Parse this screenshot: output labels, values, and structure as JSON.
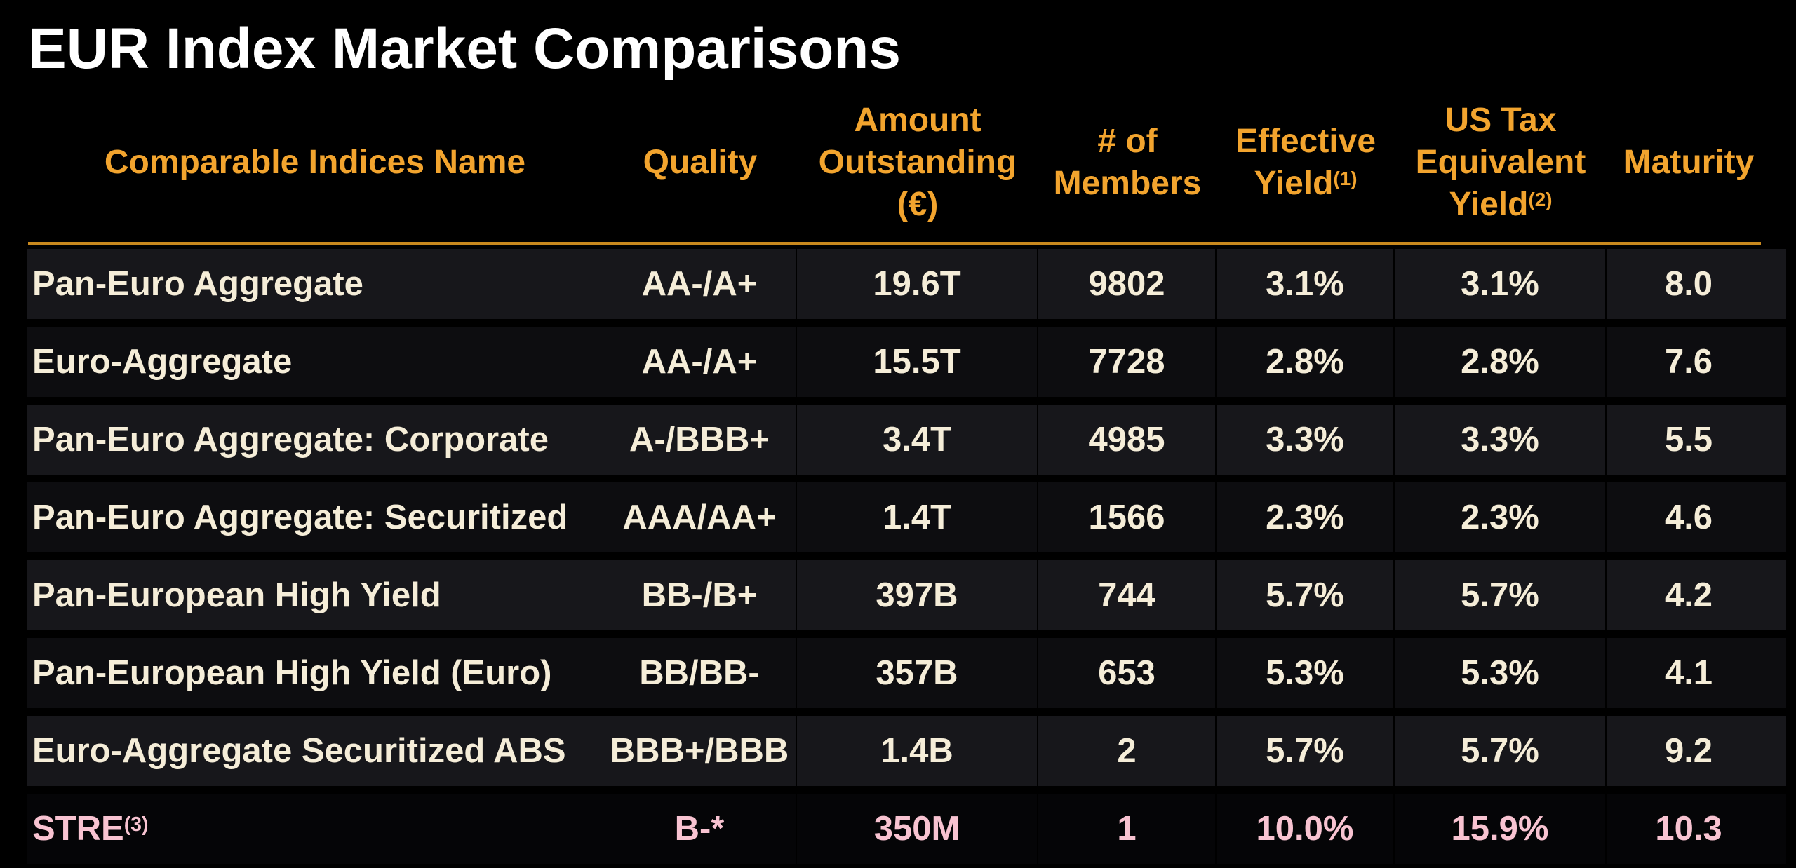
{
  "title": "EUR Index Market Comparisons",
  "colors": {
    "background": "#000000",
    "title_text": "#FFFFFF",
    "header_text": "#F2A42E",
    "header_rule": "#C9891E",
    "row_text": "#F5EDD8",
    "highlight_row_text": "#F8C3D1",
    "row_band_light": "#17171B",
    "row_band_dark": "#0D0D10"
  },
  "table": {
    "columns": [
      {
        "id": "name",
        "label": "Comparable Indices Name",
        "sup": ""
      },
      {
        "id": "quality",
        "label": "Quality",
        "sup": ""
      },
      {
        "id": "amount",
        "label": "Amount Outstanding (€)",
        "sup": ""
      },
      {
        "id": "members",
        "label": "# of Members",
        "sup": ""
      },
      {
        "id": "eff_yield",
        "label": "Effective Yield",
        "sup": "(1)"
      },
      {
        "id": "tax_yield",
        "label": "US Tax Equivalent Yield",
        "sup": "(2)"
      },
      {
        "id": "maturity",
        "label": "Maturity",
        "sup": ""
      }
    ],
    "rows": [
      {
        "name": "Pan-Euro Aggregate",
        "name_sup": "",
        "quality": "AA-/A+",
        "amount": "19.6T",
        "members": "9802",
        "eff_yield": "3.1%",
        "tax_yield": "3.1%",
        "maturity": "8.0",
        "highlight": false
      },
      {
        "name": "Euro-Aggregate",
        "name_sup": "",
        "quality": "AA-/A+",
        "amount": "15.5T",
        "members": "7728",
        "eff_yield": "2.8%",
        "tax_yield": "2.8%",
        "maturity": "7.6",
        "highlight": false
      },
      {
        "name": "Pan-Euro Aggregate: Corporate",
        "name_sup": "",
        "quality": "A-/BBB+",
        "amount": "3.4T",
        "members": "4985",
        "eff_yield": "3.3%",
        "tax_yield": "3.3%",
        "maturity": "5.5",
        "highlight": false
      },
      {
        "name": "Pan-Euro Aggregate: Securitized",
        "name_sup": "",
        "quality": "AAA/AA+",
        "amount": "1.4T",
        "members": "1566",
        "eff_yield": "2.3%",
        "tax_yield": "2.3%",
        "maturity": "4.6",
        "highlight": false
      },
      {
        "name": "Pan-European High Yield",
        "name_sup": "",
        "quality": "BB-/B+",
        "amount": "397B",
        "members": "744",
        "eff_yield": "5.7%",
        "tax_yield": "5.7%",
        "maturity": "4.2",
        "highlight": false
      },
      {
        "name": "Pan-European High Yield (Euro)",
        "name_sup": "",
        "quality": "BB/BB-",
        "amount": "357B",
        "members": "653",
        "eff_yield": "5.3%",
        "tax_yield": "5.3%",
        "maturity": "4.1",
        "highlight": false
      },
      {
        "name": "Euro-Aggregate Securitized ABS",
        "name_sup": "",
        "quality": "BBB+/BBB",
        "amount": "1.4B",
        "members": "2",
        "eff_yield": "5.7%",
        "tax_yield": "5.7%",
        "maturity": "9.2",
        "highlight": false
      },
      {
        "name": "STRE",
        "name_sup": "(3)",
        "quality": "B-*",
        "amount": "350M",
        "members": "1",
        "eff_yield": "10.0%",
        "tax_yield": "15.9%",
        "maturity": "10.3",
        "highlight": true
      }
    ]
  }
}
